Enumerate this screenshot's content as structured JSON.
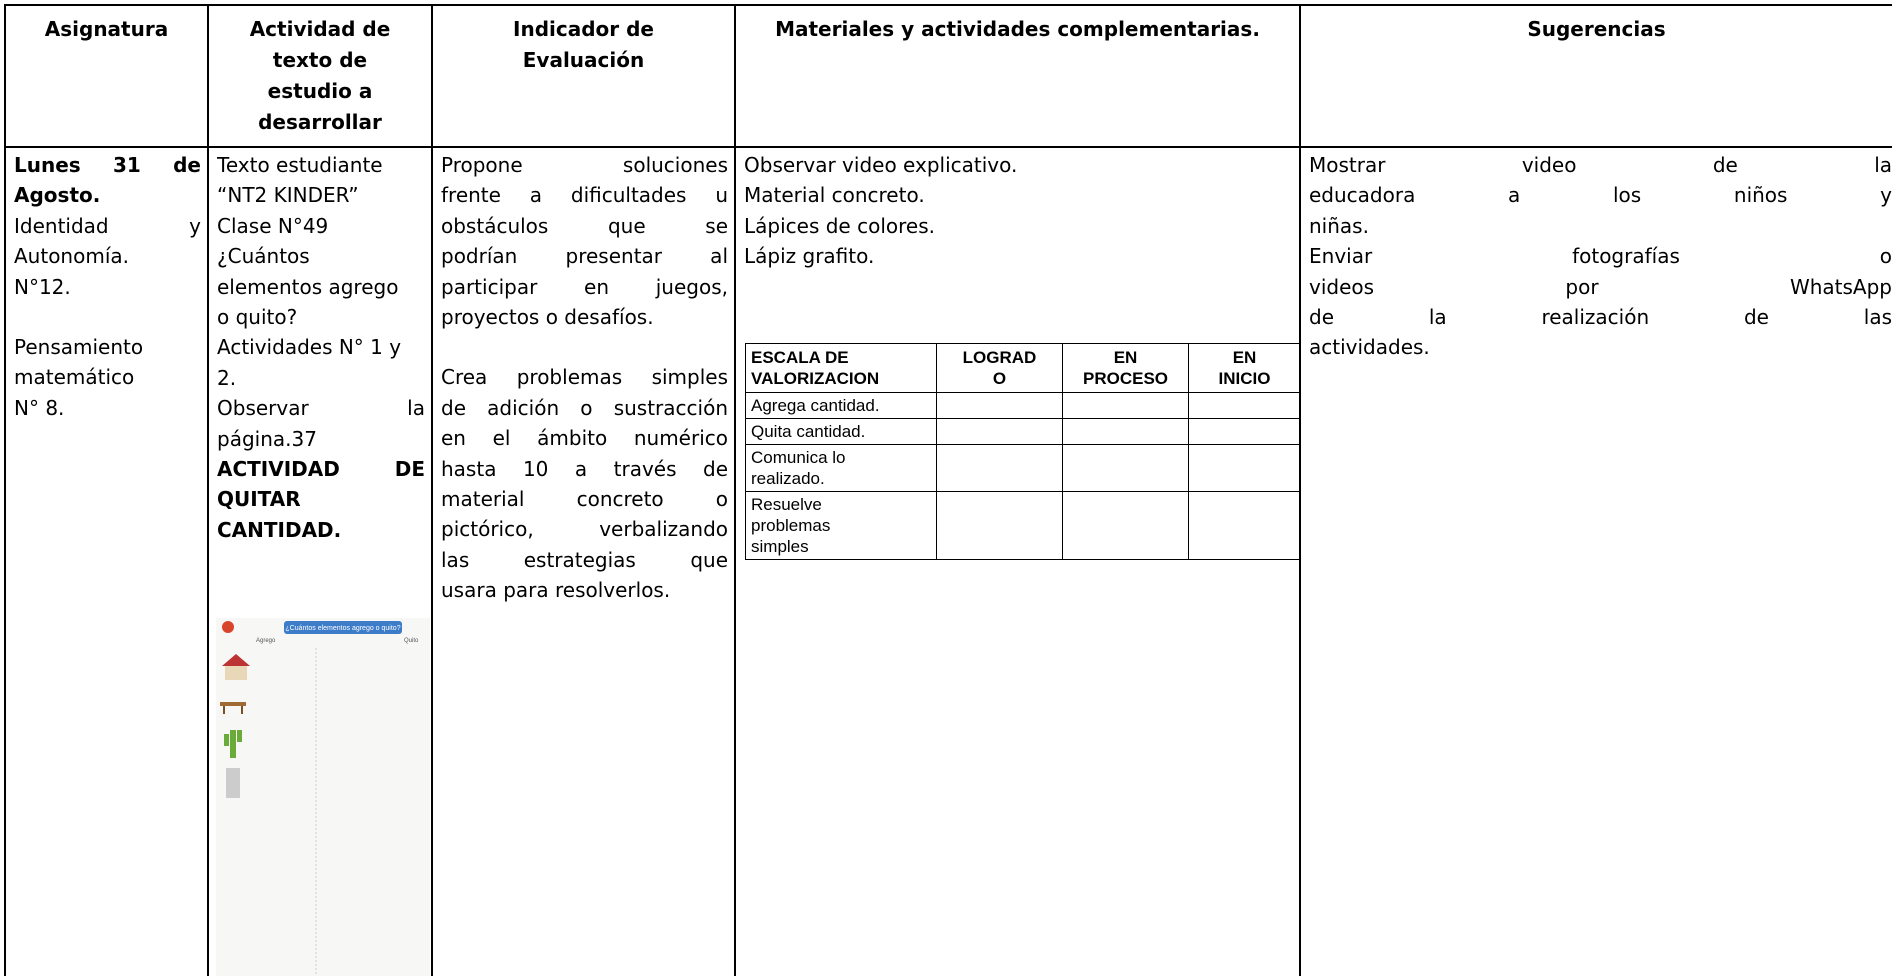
{
  "header": [
    [
      "Asignatura"
    ],
    [
      "Actividad de",
      "texto de",
      "estudio a",
      "desarrollar"
    ],
    [
      "Indicador de",
      "Evaluación"
    ],
    [
      "Materiales y actividades complementarias."
    ],
    [
      "Sugerencias"
    ]
  ],
  "body": [
    {
      "paragraphs": [
        [
          "Lunes 31 de",
          "Agosto.",
          "Identidad y",
          "Autonomía.",
          "N°12."
        ],
        [
          "Pensamiento",
          "matemático",
          "N° 8."
        ]
      ]
    },
    {
      "paragraphs": [
        [
          "Texto estudiante",
          "“NT2 KINDER”",
          "Clase N°49",
          "¿Cuántos",
          "elementos agrego",
          "o quito?",
          "Actividades N° 1 y",
          "2.",
          "Observar la",
          "página.37",
          "ACTIVIDAD DE",
          "QUITAR",
          "CANTIDAD."
        ]
      ],
      "image": {
        "title": "¿Cuántos elementos agrego o quito?",
        "left": "Agrego",
        "right": "Quito"
      }
    },
    {
      "paragraphs": [
        [
          "Propone soluciones",
          "frente a dificultades u",
          "obstáculos que se",
          "podrían presentar al",
          "participar en juegos,",
          "proyectos o desafíos."
        ],
        [
          "Crea problemas simples",
          "de adición o sustracción",
          "en el ámbito numérico",
          "hasta 10 a través de",
          "material concreto o",
          "pictórico, verbalizando",
          "las estrategias que",
          "usara para resolverlos."
        ]
      ]
    },
    {
      "paragraphs": [
        [
          "Observar video explicativo.",
          "Material concreto.",
          "Lápices de colores.",
          "Lápiz grafito."
        ]
      ],
      "table": {
        "header": [
          [
            "ESCALA DE",
            "VALORIZACION"
          ],
          [
            "LOGRAD",
            "O"
          ],
          [
            "EN",
            "PROCESO"
          ],
          [
            "EN",
            "INICIO"
          ]
        ],
        "rows": [
          [
            "Agrega cantidad."
          ],
          [
            "Quita cantidad."
          ],
          [
            "Comunica lo",
            "realizado."
          ],
          [
            "Resuelve",
            "problemas",
            "simples"
          ]
        ]
      }
    },
    {
      "paragraphs": [
        [
          "Mostrar video de la",
          "educadora a los niños y",
          "niñas."
        ],
        [
          "Enviar fotografías o",
          "videos por WhatsApp",
          "de la realización de las",
          "actividades."
        ]
      ]
    }
  ]
}
